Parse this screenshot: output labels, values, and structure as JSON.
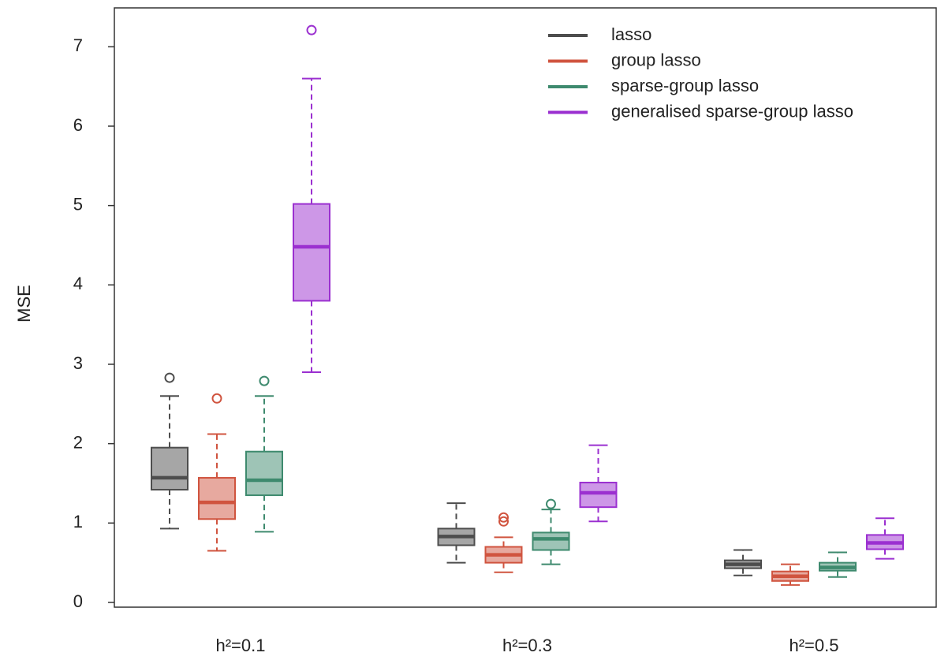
{
  "chart_data": {
    "type": "box",
    "y_label": "MSE",
    "categories": [
      "h²=0.1",
      "h²=0.3",
      "h²=0.5"
    ],
    "ylim": [
      -0.06,
      7.49
    ],
    "yticks": [
      0,
      1,
      2,
      3,
      4,
      5,
      6,
      7
    ],
    "series": [
      {
        "name": "lasso",
        "color": "#4d4d4d",
        "boxes": [
          {
            "whislo": 0.93,
            "q1": 1.42,
            "med": 1.57,
            "q3": 1.95,
            "whishi": 2.6,
            "fliers": [
              2.83
            ]
          },
          {
            "whislo": 0.5,
            "q1": 0.72,
            "med": 0.83,
            "q3": 0.93,
            "whishi": 1.25,
            "fliers": []
          },
          {
            "whislo": 0.34,
            "q1": 0.43,
            "med": 0.48,
            "q3": 0.53,
            "whishi": 0.66,
            "fliers": []
          }
        ]
      },
      {
        "name": "group lasso",
        "color": "#d0543f",
        "boxes": [
          {
            "whislo": 0.65,
            "q1": 1.05,
            "med": 1.26,
            "q3": 1.57,
            "whishi": 2.12,
            "fliers": [
              2.57
            ]
          },
          {
            "whislo": 0.38,
            "q1": 0.5,
            "med": 0.6,
            "q3": 0.7,
            "whishi": 0.82,
            "fliers": [
              1.02,
              1.07
            ]
          },
          {
            "whislo": 0.22,
            "q1": 0.27,
            "med": 0.33,
            "q3": 0.39,
            "whishi": 0.48,
            "fliers": []
          }
        ]
      },
      {
        "name": "sparse-group lasso",
        "color": "#3e8a6e",
        "boxes": [
          {
            "whislo": 0.89,
            "q1": 1.35,
            "med": 1.54,
            "q3": 1.9,
            "whishi": 2.6,
            "fliers": [
              2.79
            ]
          },
          {
            "whislo": 0.48,
            "q1": 0.66,
            "med": 0.8,
            "q3": 0.88,
            "whishi": 1.17,
            "fliers": [
              1.24
            ]
          },
          {
            "whislo": 0.32,
            "q1": 0.4,
            "med": 0.44,
            "q3": 0.5,
            "whishi": 0.63,
            "fliers": []
          }
        ]
      },
      {
        "name": "generalised sparse-group lasso",
        "color": "#9b30d0",
        "boxes": [
          {
            "whislo": 2.9,
            "q1": 3.8,
            "med": 4.48,
            "q3": 5.02,
            "whishi": 6.6,
            "fliers": [
              7.21
            ]
          },
          {
            "whislo": 1.02,
            "q1": 1.2,
            "med": 1.38,
            "q3": 1.51,
            "whishi": 1.98,
            "fliers": []
          },
          {
            "whislo": 0.55,
            "q1": 0.67,
            "med": 0.75,
            "q3": 0.85,
            "whishi": 1.06,
            "fliers": []
          }
        ]
      }
    ]
  }
}
